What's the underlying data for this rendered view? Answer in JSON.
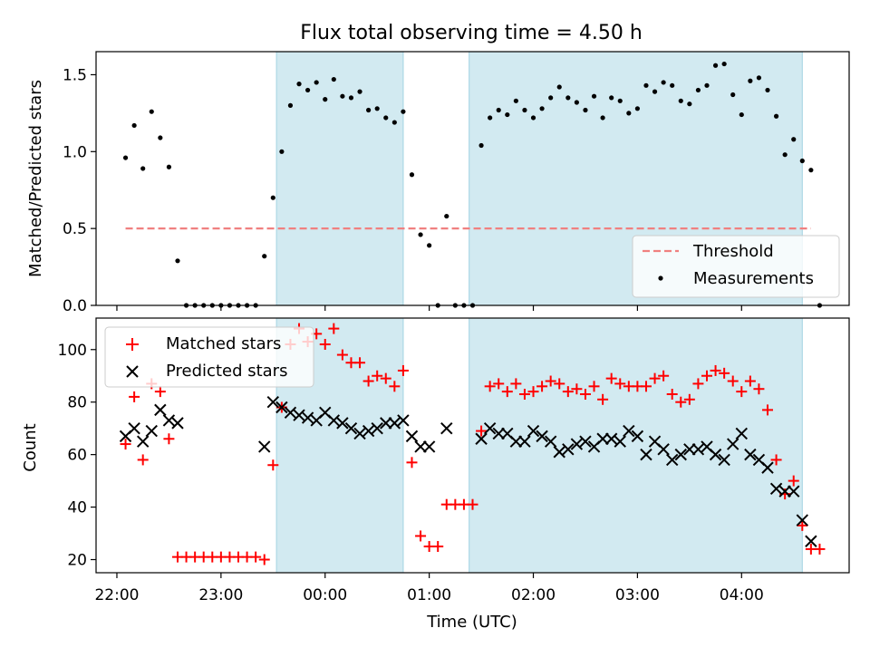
{
  "chart_data": [
    {
      "type": "scatter",
      "title": "Flux total observing time = 4.50 h",
      "xlabel": "",
      "ylabel": "Matched/Predicted stars",
      "xlim": [
        "21:48",
        "05:02"
      ],
      "ylim": [
        0,
        1.65
      ],
      "yticks": [
        0.0,
        0.5,
        1.0,
        1.5
      ],
      "ytick_labels": [
        "0.0",
        "0.5",
        "1.0",
        "1.5"
      ],
      "grid": false,
      "legend_position": "lower-right",
      "legend": [
        {
          "label": "Threshold",
          "style": "dashed-line",
          "color": "#f08080"
        },
        {
          "label": "Measurements",
          "style": "dot",
          "color": "#000000"
        }
      ],
      "threshold": {
        "value": 0.5,
        "x_start": "22:05",
        "x_end": "04:40",
        "color": "#f08080"
      },
      "shaded_regions": [
        {
          "start": "23:32",
          "end": "00:45",
          "color": "#add8e6"
        },
        {
          "start": "01:23",
          "end": "04:35",
          "color": "#add8e6"
        }
      ],
      "series": [
        {
          "name": "Measurements",
          "marker": "dot",
          "color": "#000000",
          "points": [
            [
              "22:05",
              0.96
            ],
            [
              "22:10",
              1.17
            ],
            [
              "22:15",
              0.89
            ],
            [
              "22:20",
              1.26
            ],
            [
              "22:25",
              1.09
            ],
            [
              "22:30",
              0.9
            ],
            [
              "22:35",
              0.29
            ],
            [
              "22:40",
              0.0
            ],
            [
              "22:45",
              0.0
            ],
            [
              "22:50",
              0.0
            ],
            [
              "22:55",
              0.0
            ],
            [
              "23:00",
              0.0
            ],
            [
              "23:05",
              0.0
            ],
            [
              "23:10",
              0.0
            ],
            [
              "23:15",
              0.0
            ],
            [
              "23:20",
              0.0
            ],
            [
              "23:25",
              0.32
            ],
            [
              "23:30",
              0.7
            ],
            [
              "23:35",
              1.0
            ],
            [
              "23:40",
              1.3
            ],
            [
              "23:45",
              1.44
            ],
            [
              "23:50",
              1.4
            ],
            [
              "23:55",
              1.45
            ],
            [
              "00:00",
              1.34
            ],
            [
              "00:05",
              1.47
            ],
            [
              "00:10",
              1.36
            ],
            [
              "00:15",
              1.35
            ],
            [
              "00:20",
              1.39
            ],
            [
              "00:25",
              1.27
            ],
            [
              "00:30",
              1.28
            ],
            [
              "00:35",
              1.22
            ],
            [
              "00:40",
              1.19
            ],
            [
              "00:45",
              1.26
            ],
            [
              "00:50",
              0.85
            ],
            [
              "00:55",
              0.46
            ],
            [
              "01:00",
              0.39
            ],
            [
              "01:05",
              0.0
            ],
            [
              "01:10",
              0.58
            ],
            [
              "01:15",
              0.0
            ],
            [
              "01:20",
              0.0
            ],
            [
              "01:25",
              0.0
            ],
            [
              "01:30",
              1.04
            ],
            [
              "01:35",
              1.22
            ],
            [
              "01:40",
              1.27
            ],
            [
              "01:45",
              1.24
            ],
            [
              "01:50",
              1.33
            ],
            [
              "01:55",
              1.27
            ],
            [
              "02:00",
              1.22
            ],
            [
              "02:05",
              1.28
            ],
            [
              "02:10",
              1.35
            ],
            [
              "02:15",
              1.42
            ],
            [
              "02:20",
              1.35
            ],
            [
              "02:25",
              1.32
            ],
            [
              "02:30",
              1.27
            ],
            [
              "02:35",
              1.36
            ],
            [
              "02:40",
              1.22
            ],
            [
              "02:45",
              1.35
            ],
            [
              "02:50",
              1.33
            ],
            [
              "02:55",
              1.25
            ],
            [
              "03:00",
              1.28
            ],
            [
              "03:05",
              1.43
            ],
            [
              "03:10",
              1.39
            ],
            [
              "03:15",
              1.45
            ],
            [
              "03:20",
              1.43
            ],
            [
              "03:25",
              1.33
            ],
            [
              "03:30",
              1.31
            ],
            [
              "03:35",
              1.4
            ],
            [
              "03:40",
              1.43
            ],
            [
              "03:45",
              1.56
            ],
            [
              "03:50",
              1.57
            ],
            [
              "03:55",
              1.37
            ],
            [
              "04:00",
              1.24
            ],
            [
              "04:05",
              1.46
            ],
            [
              "04:10",
              1.48
            ],
            [
              "04:15",
              1.4
            ],
            [
              "04:20",
              1.23
            ],
            [
              "04:25",
              0.98
            ],
            [
              "04:30",
              1.08
            ],
            [
              "04:35",
              0.94
            ],
            [
              "04:40",
              0.88
            ],
            [
              "04:45",
              0.0
            ]
          ]
        }
      ]
    },
    {
      "type": "scatter",
      "title": "",
      "xlabel": "Time (UTC)",
      "ylabel": "Count",
      "xlim": [
        "21:48",
        "05:02"
      ],
      "ylim": [
        15,
        112
      ],
      "yticks": [
        20,
        40,
        60,
        80,
        100
      ],
      "ytick_labels": [
        "20",
        "40",
        "60",
        "80",
        "100"
      ],
      "xticks": [
        "22:00",
        "23:00",
        "00:00",
        "01:00",
        "02:00",
        "03:00",
        "04:00"
      ],
      "xtick_labels": [
        "22:00",
        "23:00",
        "00:00",
        "01:00",
        "02:00",
        "03:00",
        "04:00"
      ],
      "grid": false,
      "legend_position": "upper-left",
      "legend": [
        {
          "label": "Matched stars",
          "style": "plus",
          "color": "#ff0000"
        },
        {
          "label": "Predicted stars",
          "style": "x",
          "color": "#000000"
        }
      ],
      "shaded_regions": [
        {
          "start": "23:32",
          "end": "00:45",
          "color": "#add8e6"
        },
        {
          "start": "01:23",
          "end": "04:35",
          "color": "#add8e6"
        }
      ],
      "series": [
        {
          "name": "Matched stars",
          "marker": "plus",
          "color": "#ff0000",
          "points": [
            [
              "22:05",
              64
            ],
            [
              "22:10",
              82
            ],
            [
              "22:15",
              58
            ],
            [
              "22:20",
              87
            ],
            [
              "22:25",
              84
            ],
            [
              "22:30",
              66
            ],
            [
              "22:35",
              21
            ],
            [
              "22:40",
              21
            ],
            [
              "22:45",
              21
            ],
            [
              "22:50",
              21
            ],
            [
              "22:55",
              21
            ],
            [
              "23:00",
              21
            ],
            [
              "23:05",
              21
            ],
            [
              "23:10",
              21
            ],
            [
              "23:15",
              21
            ],
            [
              "23:20",
              21
            ],
            [
              "23:25",
              20
            ],
            [
              "23:30",
              56
            ],
            [
              "23:35",
              78
            ],
            [
              "23:40",
              102
            ],
            [
              "23:45",
              108
            ],
            [
              "23:50",
              103
            ],
            [
              "23:55",
              106
            ],
            [
              "00:00",
              102
            ],
            [
              "00:05",
              108
            ],
            [
              "00:10",
              98
            ],
            [
              "00:15",
              95
            ],
            [
              "00:20",
              95
            ],
            [
              "00:25",
              88
            ],
            [
              "00:30",
              90
            ],
            [
              "00:35",
              89
            ],
            [
              "00:40",
              86
            ],
            [
              "00:45",
              92
            ],
            [
              "00:50",
              57
            ],
            [
              "00:55",
              29
            ],
            [
              "01:00",
              25
            ],
            [
              "01:05",
              25
            ],
            [
              "01:10",
              41
            ],
            [
              "01:15",
              41
            ],
            [
              "01:20",
              41
            ],
            [
              "01:25",
              41
            ],
            [
              "01:30",
              69
            ],
            [
              "01:35",
              86
            ],
            [
              "01:40",
              87
            ],
            [
              "01:45",
              84
            ],
            [
              "01:50",
              87
            ],
            [
              "01:55",
              83
            ],
            [
              "02:00",
              84
            ],
            [
              "02:05",
              86
            ],
            [
              "02:10",
              88
            ],
            [
              "02:15",
              87
            ],
            [
              "02:20",
              84
            ],
            [
              "02:25",
              85
            ],
            [
              "02:30",
              83
            ],
            [
              "02:35",
              86
            ],
            [
              "02:40",
              81
            ],
            [
              "02:45",
              89
            ],
            [
              "02:50",
              87
            ],
            [
              "02:55",
              86
            ],
            [
              "03:00",
              86
            ],
            [
              "03:05",
              86
            ],
            [
              "03:10",
              89
            ],
            [
              "03:15",
              90
            ],
            [
              "03:20",
              83
            ],
            [
              "03:25",
              80
            ],
            [
              "03:30",
              81
            ],
            [
              "03:35",
              87
            ],
            [
              "03:40",
              90
            ],
            [
              "03:45",
              92
            ],
            [
              "03:50",
              91
            ],
            [
              "03:55",
              88
            ],
            [
              "04:00",
              84
            ],
            [
              "04:05",
              88
            ],
            [
              "04:10",
              85
            ],
            [
              "04:15",
              77
            ],
            [
              "04:20",
              58
            ],
            [
              "04:25",
              45
            ],
            [
              "04:30",
              50
            ],
            [
              "04:35",
              33
            ],
            [
              "04:40",
              24
            ],
            [
              "04:45",
              24
            ]
          ]
        },
        {
          "name": "Predicted stars",
          "marker": "x",
          "color": "#000000",
          "points": [
            [
              "22:05",
              67
            ],
            [
              "22:10",
              70
            ],
            [
              "22:15",
              65
            ],
            [
              "22:20",
              69
            ],
            [
              "22:25",
              77
            ],
            [
              "22:30",
              73
            ],
            [
              "22:35",
              72
            ],
            [
              "23:25",
              63
            ],
            [
              "23:30",
              80
            ],
            [
              "23:35",
              78
            ],
            [
              "23:40",
              76
            ],
            [
              "23:45",
              75
            ],
            [
              "23:50",
              74
            ],
            [
              "23:55",
              73
            ],
            [
              "00:00",
              76
            ],
            [
              "00:05",
              73
            ],
            [
              "00:10",
              72
            ],
            [
              "00:15",
              70
            ],
            [
              "00:20",
              68
            ],
            [
              "00:25",
              69
            ],
            [
              "00:30",
              70
            ],
            [
              "00:35",
              72
            ],
            [
              "00:40",
              72
            ],
            [
              "00:45",
              73
            ],
            [
              "00:50",
              67
            ],
            [
              "00:55",
              63
            ],
            [
              "01:00",
              63
            ],
            [
              "01:10",
              70
            ],
            [
              "01:30",
              66
            ],
            [
              "01:35",
              70
            ],
            [
              "01:40",
              68
            ],
            [
              "01:45",
              68
            ],
            [
              "01:50",
              65
            ],
            [
              "01:55",
              65
            ],
            [
              "02:00",
              69
            ],
            [
              "02:05",
              67
            ],
            [
              "02:10",
              65
            ],
            [
              "02:15",
              61
            ],
            [
              "02:20",
              62
            ],
            [
              "02:25",
              64
            ],
            [
              "02:30",
              65
            ],
            [
              "02:35",
              63
            ],
            [
              "02:40",
              66
            ],
            [
              "02:45",
              66
            ],
            [
              "02:50",
              65
            ],
            [
              "02:55",
              69
            ],
            [
              "03:00",
              67
            ],
            [
              "03:05",
              60
            ],
            [
              "03:10",
              65
            ],
            [
              "03:15",
              62
            ],
            [
              "03:20",
              58
            ],
            [
              "03:25",
              60
            ],
            [
              "03:30",
              62
            ],
            [
              "03:35",
              62
            ],
            [
              "03:40",
              63
            ],
            [
              "03:45",
              60
            ],
            [
              "03:50",
              58
            ],
            [
              "03:55",
              64
            ],
            [
              "04:00",
              68
            ],
            [
              "04:05",
              60
            ],
            [
              "04:10",
              58
            ],
            [
              "04:15",
              55
            ],
            [
              "04:20",
              47
            ],
            [
              "04:25",
              46
            ],
            [
              "04:30",
              46
            ],
            [
              "04:35",
              35
            ],
            [
              "04:40",
              27
            ]
          ]
        }
      ]
    }
  ]
}
